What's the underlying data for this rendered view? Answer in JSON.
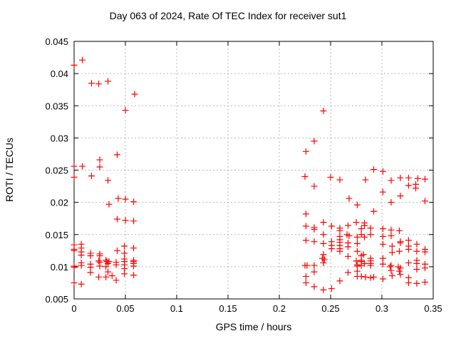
{
  "window": {
    "background": "#ffffff"
  },
  "chart_data": {
    "type": "scatter",
    "title": "Day 063 of 2024, Rate Of TEC Index for receiver sut1",
    "xlabel": "GPS time / hours",
    "ylabel": "ROTI / TECUs",
    "xlim": [
      0,
      0.35
    ],
    "ylim": [
      0.005,
      0.045
    ],
    "x_ticks": [
      0,
      0.05,
      0.1,
      0.15,
      0.2,
      0.25,
      0.3,
      0.35
    ],
    "x_tick_labels": [
      "0",
      "0.05",
      "0.1",
      "0.15",
      "0.2",
      "0.25",
      "0.3",
      "0.35"
    ],
    "y_ticks": [
      0.005,
      0.01,
      0.015,
      0.02,
      0.025,
      0.03,
      0.035,
      0.04,
      0.045
    ],
    "y_tick_labels": [
      "0.005",
      "0.01",
      "0.015",
      "0.02",
      "0.025",
      "0.03",
      "0.035",
      "0.04",
      "0.045"
    ],
    "grid": true,
    "legend": "none",
    "marker": {
      "shape": "plus",
      "color": "#ff0000",
      "size": 9
    },
    "series": [
      {
        "name": "ROTI",
        "points": [
          [
            0.0,
            0.0413
          ],
          [
            0.008,
            0.0421
          ],
          [
            0.017,
            0.0385
          ],
          [
            0.024,
            0.0384
          ],
          [
            0.033,
            0.0388
          ],
          [
            0.059,
            0.0368
          ],
          [
            0.05,
            0.0343
          ],
          [
            0.042,
            0.0274
          ],
          [
            0.025,
            0.0266
          ],
          [
            0.0,
            0.0256
          ],
          [
            0.008,
            0.0256
          ],
          [
            0.025,
            0.0255
          ],
          [
            0.0,
            0.0239
          ],
          [
            0.017,
            0.0241
          ],
          [
            0.033,
            0.0234
          ],
          [
            0.043,
            0.0206
          ],
          [
            0.05,
            0.0205
          ],
          [
            0.034,
            0.0197
          ],
          [
            0.058,
            0.0201
          ],
          [
            0.042,
            0.0174
          ],
          [
            0.05,
            0.0172
          ],
          [
            0.058,
            0.0171
          ],
          [
            0.0,
            0.0134
          ],
          [
            0.007,
            0.0135
          ],
          [
            0.0,
            0.0127
          ],
          [
            0.0,
            0.0125
          ],
          [
            0.007,
            0.0129
          ],
          [
            0.007,
            0.0123
          ],
          [
            0.007,
            0.0118
          ],
          [
            0.016,
            0.0121
          ],
          [
            0.016,
            0.0117
          ],
          [
            0.025,
            0.012
          ],
          [
            0.025,
            0.0117
          ],
          [
            0.042,
            0.0125
          ],
          [
            0.049,
            0.0132
          ],
          [
            0.049,
            0.0121
          ],
          [
            0.058,
            0.0129
          ],
          [
            0.0,
            0.0101
          ],
          [
            0.0,
            0.0099
          ],
          [
            0.007,
            0.0106
          ],
          [
            0.007,
            0.0102
          ],
          [
            0.016,
            0.0104
          ],
          [
            0.016,
            0.0099
          ],
          [
            0.024,
            0.0109
          ],
          [
            0.025,
            0.0107
          ],
          [
            0.025,
            0.0101
          ],
          [
            0.031,
            0.011
          ],
          [
            0.032,
            0.0108
          ],
          [
            0.033,
            0.0105
          ],
          [
            0.031,
            0.01
          ],
          [
            0.034,
            0.0108
          ],
          [
            0.041,
            0.0107
          ],
          [
            0.041,
            0.0103
          ],
          [
            0.049,
            0.0112
          ],
          [
            0.049,
            0.0108
          ],
          [
            0.049,
            0.0103
          ],
          [
            0.049,
            0.0097
          ],
          [
            0.058,
            0.011
          ],
          [
            0.058,
            0.0108
          ],
          [
            0.058,
            0.0105
          ],
          [
            0.058,
            0.0101
          ],
          [
            0.016,
            0.0091
          ],
          [
            0.033,
            0.0092
          ],
          [
            0.037,
            0.0086
          ],
          [
            0.024,
            0.0084
          ],
          [
            0.031,
            0.0084
          ],
          [
            0.049,
            0.0089
          ],
          [
            0.058,
            0.0087
          ],
          [
            0.041,
            0.0079
          ],
          [
            0.0,
            0.0075
          ],
          [
            0.007,
            0.0073
          ],
          [
            0.243,
            0.0342
          ],
          [
            0.234,
            0.0295
          ],
          [
            0.226,
            0.0279
          ],
          [
            0.292,
            0.0251
          ],
          [
            0.301,
            0.0248
          ],
          [
            0.225,
            0.024
          ],
          [
            0.25,
            0.0239
          ],
          [
            0.318,
            0.0238
          ],
          [
            0.326,
            0.0238
          ],
          [
            0.335,
            0.0237
          ],
          [
            0.342,
            0.0236
          ],
          [
            0.234,
            0.0225
          ],
          [
            0.259,
            0.0235
          ],
          [
            0.284,
            0.0235
          ],
          [
            0.309,
            0.0234
          ],
          [
            0.326,
            0.0226
          ],
          [
            0.333,
            0.0228
          ],
          [
            0.333,
            0.0222
          ],
          [
            0.301,
            0.0216
          ],
          [
            0.318,
            0.021
          ],
          [
            0.268,
            0.0206
          ],
          [
            0.309,
            0.02
          ],
          [
            0.342,
            0.0202
          ],
          [
            0.276,
            0.0196
          ],
          [
            0.292,
            0.0186
          ],
          [
            0.226,
            0.0182
          ],
          [
            0.243,
            0.0169
          ],
          [
            0.226,
            0.0163
          ],
          [
            0.234,
            0.0161
          ],
          [
            0.251,
            0.0163
          ],
          [
            0.267,
            0.0164
          ],
          [
            0.275,
            0.0169
          ],
          [
            0.283,
            0.0168
          ],
          [
            0.283,
            0.0164
          ],
          [
            0.234,
            0.0158
          ],
          [
            0.243,
            0.015
          ],
          [
            0.259,
            0.016
          ],
          [
            0.259,
            0.0156
          ],
          [
            0.28,
            0.0159
          ],
          [
            0.28,
            0.015
          ],
          [
            0.289,
            0.016
          ],
          [
            0.289,
            0.015
          ],
          [
            0.301,
            0.0159
          ],
          [
            0.309,
            0.0157
          ],
          [
            0.317,
            0.0156
          ],
          [
            0.301,
            0.0147
          ],
          [
            0.309,
            0.0148
          ],
          [
            0.226,
            0.0141
          ],
          [
            0.234,
            0.0139
          ],
          [
            0.243,
            0.0136
          ],
          [
            0.251,
            0.0139
          ],
          [
            0.251,
            0.0133
          ],
          [
            0.251,
            0.0128
          ],
          [
            0.259,
            0.0147
          ],
          [
            0.259,
            0.0142
          ],
          [
            0.259,
            0.0138
          ],
          [
            0.259,
            0.0133
          ],
          [
            0.259,
            0.0128
          ],
          [
            0.259,
            0.0124
          ],
          [
            0.266,
            0.015
          ],
          [
            0.268,
            0.0148
          ],
          [
            0.267,
            0.0137
          ],
          [
            0.267,
            0.0131
          ],
          [
            0.276,
            0.0146
          ],
          [
            0.276,
            0.0136
          ],
          [
            0.276,
            0.0124
          ],
          [
            0.283,
            0.0146
          ],
          [
            0.301,
            0.0135
          ],
          [
            0.31,
            0.0132
          ],
          [
            0.31,
            0.0122
          ],
          [
            0.317,
            0.0124
          ],
          [
            0.318,
            0.0139
          ],
          [
            0.318,
            0.0137
          ],
          [
            0.326,
            0.0141
          ],
          [
            0.326,
            0.0132
          ],
          [
            0.326,
            0.0127
          ],
          [
            0.334,
            0.0135
          ],
          [
            0.334,
            0.0124
          ],
          [
            0.342,
            0.0127
          ],
          [
            0.342,
            0.0123
          ],
          [
            0.243,
            0.0119
          ],
          [
            0.242,
            0.0113
          ],
          [
            0.244,
            0.0111
          ],
          [
            0.243,
            0.0106
          ],
          [
            0.267,
            0.0116
          ],
          [
            0.282,
            0.0119
          ],
          [
            0.283,
            0.0105
          ],
          [
            0.225,
            0.0102
          ],
          [
            0.227,
            0.0102
          ],
          [
            0.234,
            0.0102
          ],
          [
            0.275,
            0.0109
          ],
          [
            0.276,
            0.0103
          ],
          [
            0.276,
            0.0101
          ],
          [
            0.28,
            0.0117
          ],
          [
            0.28,
            0.011
          ],
          [
            0.28,
            0.0108
          ],
          [
            0.28,
            0.0102
          ],
          [
            0.289,
            0.0113
          ],
          [
            0.289,
            0.0109
          ],
          [
            0.289,
            0.0105
          ],
          [
            0.289,
            0.0102
          ],
          [
            0.301,
            0.0113
          ],
          [
            0.301,
            0.0104
          ],
          [
            0.309,
            0.0102
          ],
          [
            0.308,
            0.01
          ],
          [
            0.309,
            0.0094
          ],
          [
            0.316,
            0.01
          ],
          [
            0.318,
            0.0098
          ],
          [
            0.317,
            0.0093
          ],
          [
            0.326,
            0.0106
          ],
          [
            0.334,
            0.011
          ],
          [
            0.334,
            0.0105
          ],
          [
            0.334,
            0.0096
          ],
          [
            0.342,
            0.0104
          ],
          [
            0.342,
            0.0098
          ],
          [
            0.234,
            0.0092
          ],
          [
            0.267,
            0.0091
          ],
          [
            0.276,
            0.0093
          ],
          [
            0.276,
            0.0085
          ],
          [
            0.226,
            0.0085
          ],
          [
            0.226,
            0.0075
          ],
          [
            0.259,
            0.0078
          ],
          [
            0.234,
            0.0069
          ],
          [
            0.243,
            0.0064
          ],
          [
            0.251,
            0.0066
          ],
          [
            0.28,
            0.0085
          ],
          [
            0.284,
            0.0084
          ],
          [
            0.289,
            0.0083
          ],
          [
            0.292,
            0.0084
          ],
          [
            0.301,
            0.0081
          ],
          [
            0.31,
            0.0086
          ],
          [
            0.318,
            0.0088
          ],
          [
            0.326,
            0.0083
          ],
          [
            0.326,
            0.0075
          ],
          [
            0.334,
            0.0074
          ],
          [
            0.342,
            0.0076
          ]
        ]
      }
    ],
    "colors": {
      "marker": "#ff0000",
      "grid": "#b9b9b9",
      "border": "#000000",
      "text": "#000000"
    }
  }
}
